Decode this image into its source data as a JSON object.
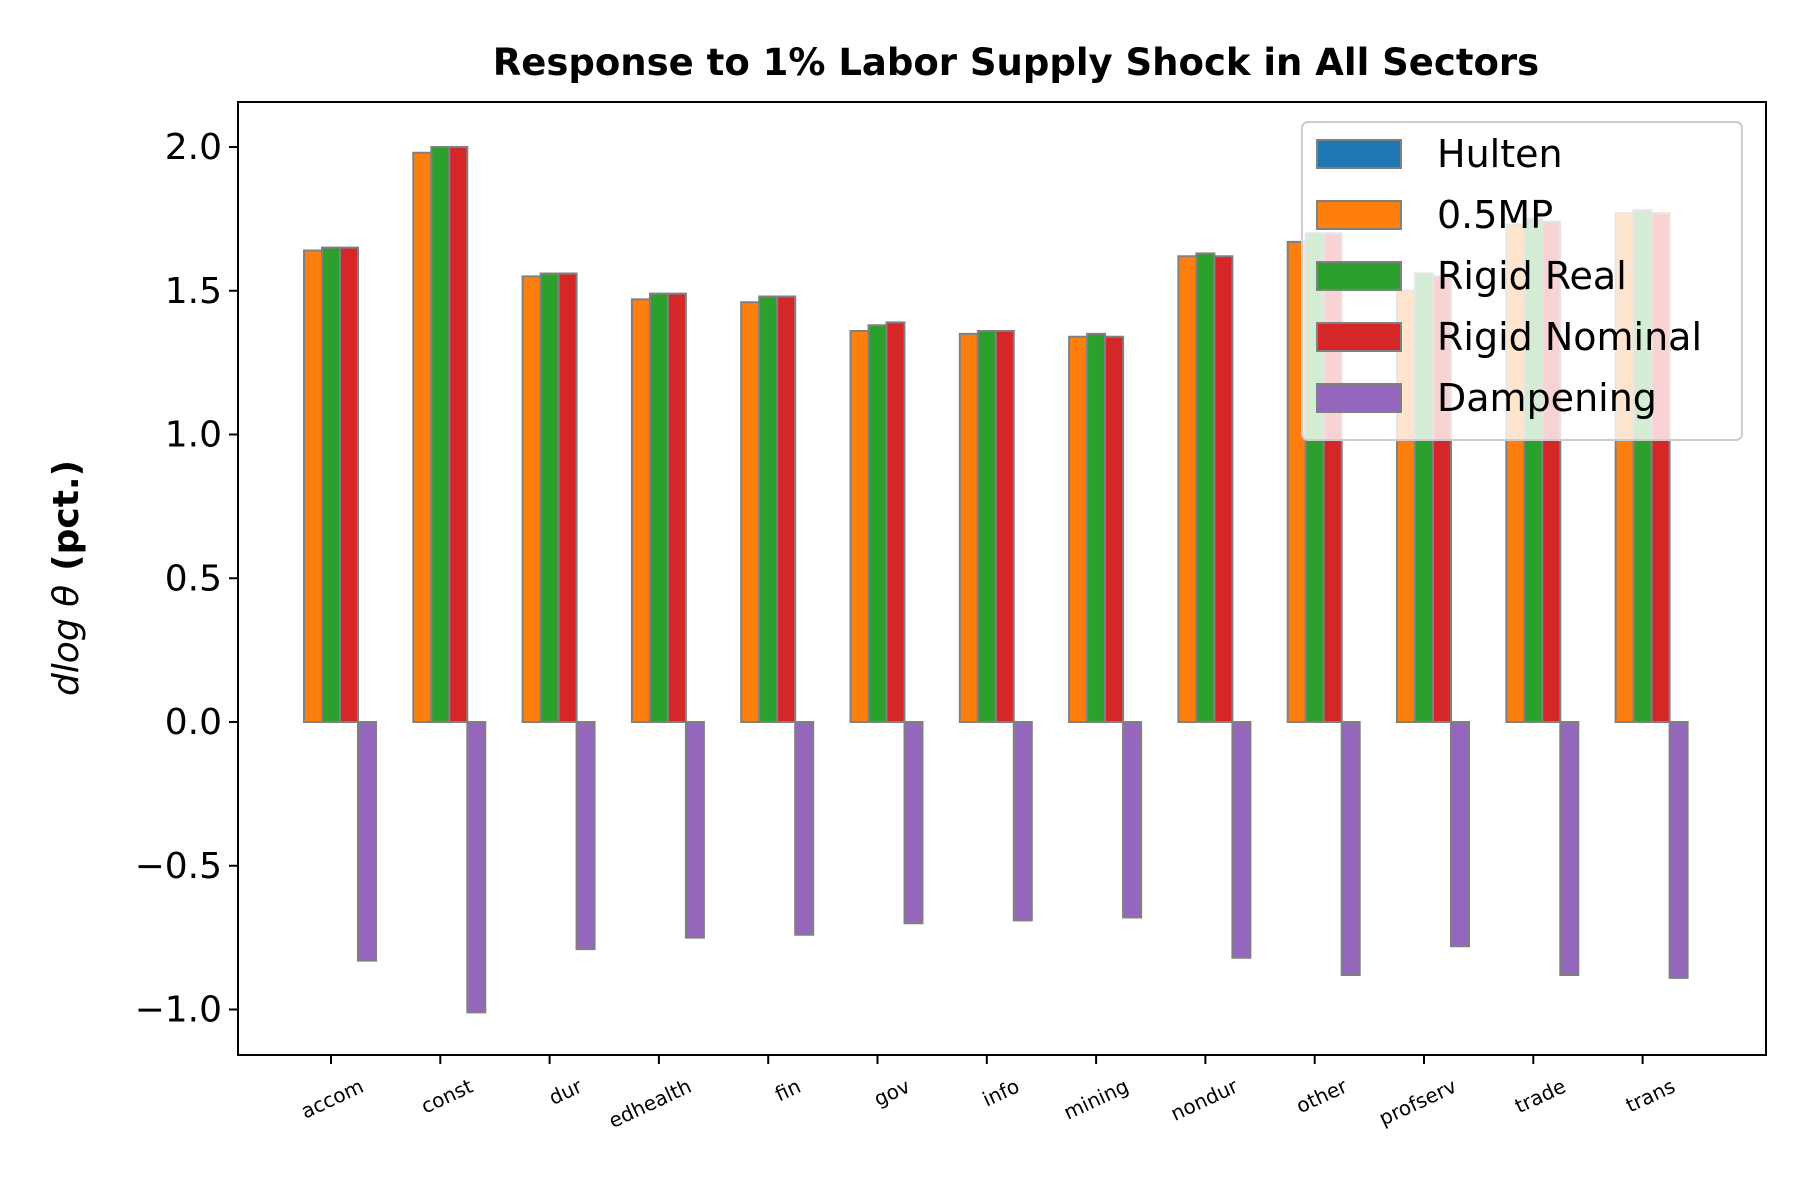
{
  "chart_data": {
    "type": "bar",
    "title": "Response to 1% Labor Supply Shock in All Sectors",
    "xlabel": "",
    "ylabel_math": "dlog θ",
    "ylabel_unit": "(pct.)",
    "ylim": [
      -1.15,
      2.16
    ],
    "yticks": [
      -1.0,
      -0.5,
      0.0,
      0.5,
      1.0,
      1.5,
      2.0
    ],
    "ytick_labels": [
      "−1.0",
      "−0.5",
      "0.0",
      "0.5",
      "1.0",
      "1.5",
      "2.0"
    ],
    "categories": [
      "accom",
      "const",
      "dur",
      "edhealth",
      "fin",
      "gov",
      "info",
      "mining",
      "nondur",
      "other",
      "profserv",
      "trade",
      "trans"
    ],
    "series": [
      {
        "name": "Hulten",
        "color": "#1f77b4",
        "values": [
          0,
          0,
          0,
          0,
          0,
          0,
          0,
          0,
          0,
          0,
          0,
          0,
          0
        ]
      },
      {
        "name": "0.5MP",
        "color": "#ff7f0e",
        "values": [
          1.64,
          1.98,
          1.55,
          1.47,
          1.46,
          1.36,
          1.35,
          1.34,
          1.62,
          1.67,
          1.5,
          1.73,
          1.77
        ]
      },
      {
        "name": "Rigid Real",
        "color": "#2ca02c",
        "values": [
          1.65,
          2.0,
          1.56,
          1.49,
          1.48,
          1.38,
          1.36,
          1.35,
          1.63,
          1.7,
          1.56,
          1.75,
          1.78
        ]
      },
      {
        "name": "Rigid Nominal",
        "color": "#d62728",
        "values": [
          1.65,
          2.0,
          1.56,
          1.49,
          1.48,
          1.39,
          1.36,
          1.34,
          1.62,
          1.7,
          1.55,
          1.74,
          1.77
        ]
      },
      {
        "name": "Dampening",
        "color": "#9467bd",
        "values": [
          -0.83,
          -1.01,
          -0.79,
          -0.75,
          -0.74,
          -0.7,
          -0.69,
          -0.68,
          -0.82,
          -0.88,
          -0.78,
          -0.88,
          -0.89
        ]
      }
    ],
    "legend_position": "upper right",
    "grid": false
  }
}
